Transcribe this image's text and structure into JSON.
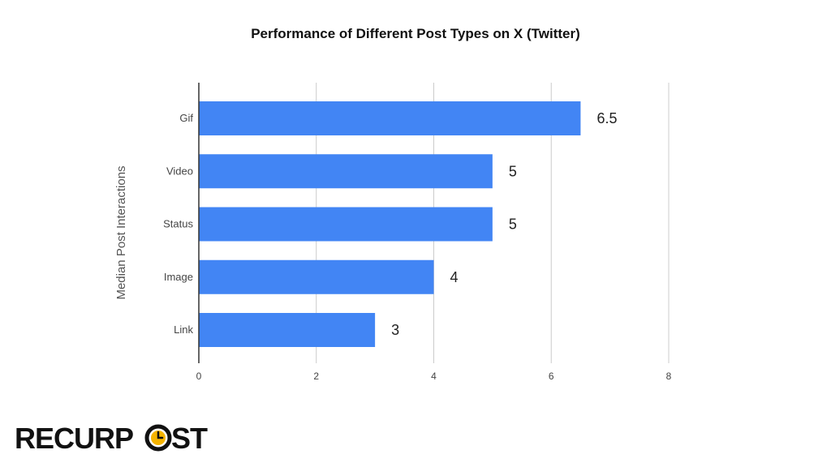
{
  "chart_data": {
    "type": "bar",
    "orientation": "horizontal",
    "title": "Performance of Different Post Types on X (Twitter)",
    "ylabel": "Median Post Interactions",
    "xlabel": "",
    "categories": [
      "Gif",
      "Video",
      "Status",
      "Image",
      "Link"
    ],
    "values": [
      6.5,
      5,
      5,
      4,
      3
    ],
    "data_labels": [
      "6.5",
      "5",
      "5",
      "4",
      "3"
    ],
    "xlim": [
      0,
      8
    ],
    "xticks": [
      0,
      2,
      4,
      6,
      8
    ],
    "grid": "vertical",
    "legend": "none",
    "colors": {
      "bar": "#4285F4",
      "grid": "#cccccc",
      "axis": "#333333",
      "tick_text": "#444444",
      "label_text": "#222222"
    }
  },
  "brand": {
    "logo_text": "RECURPOST",
    "logo_color": "#111111",
    "accent_color": "#F5B400"
  }
}
